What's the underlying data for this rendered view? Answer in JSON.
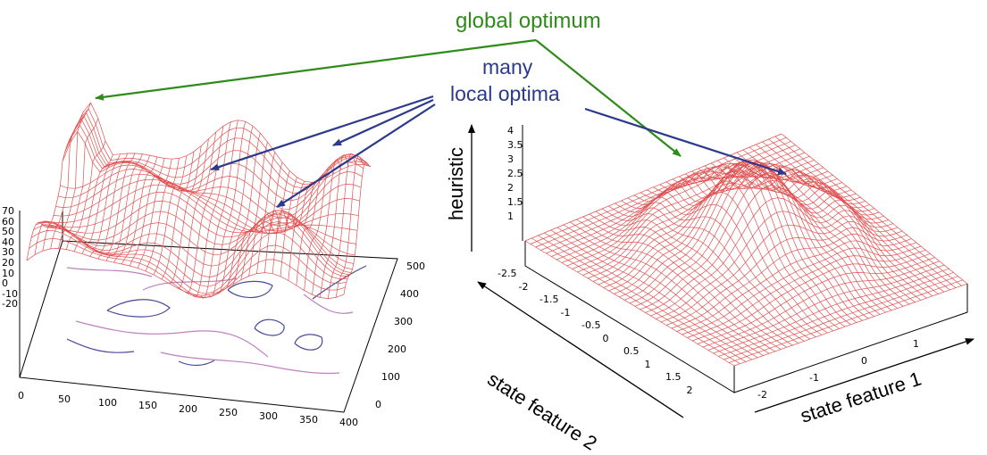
{
  "annotations": {
    "global_optimum": "global optimum",
    "many": "many",
    "local_optima": "local optima"
  },
  "left_plot": {
    "z_ticks": [
      "70",
      "60",
      "50",
      "40",
      "30",
      "20",
      "10",
      "0",
      "-10",
      "-20"
    ],
    "x_ticks": [
      "0",
      "50",
      "100",
      "150",
      "200",
      "250",
      "300",
      "350",
      "400"
    ],
    "y_ticks": [
      "500",
      "400",
      "300",
      "200",
      "100",
      "0"
    ]
  },
  "right_plot": {
    "z_axis_label": "heuristic",
    "x_axis_label": "state feature 1",
    "y_axis_label": "state feature 2",
    "z_ticks": [
      "4",
      "3.5",
      "3",
      "2.5",
      "2",
      "1.5",
      "1"
    ],
    "y_ticks": [
      "-2.5",
      "-2",
      "-1.5",
      "-1",
      "-0.5",
      "0",
      "0.5",
      "1",
      "1.5",
      "2"
    ],
    "x_ticks": [
      "-2",
      "-1",
      "0",
      "1"
    ]
  },
  "colors": {
    "green": "#2e8b1a",
    "navy": "#2b3a8a",
    "mesh": "#e05050"
  }
}
